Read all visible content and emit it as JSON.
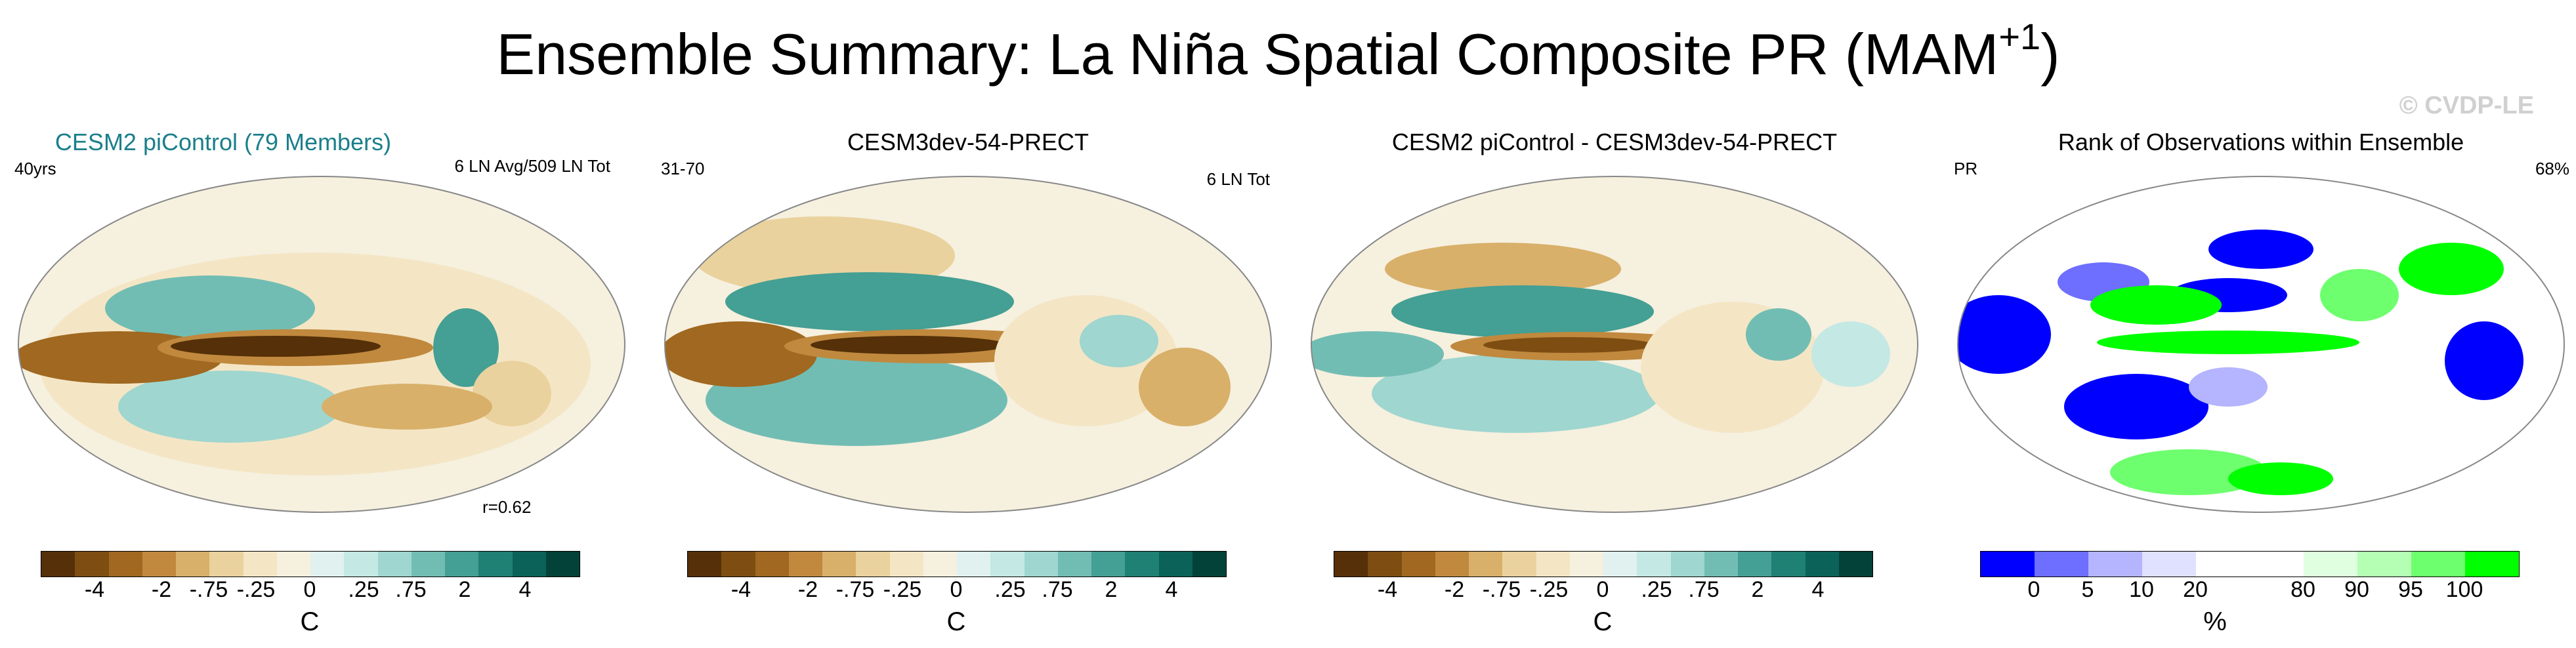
{
  "title": {
    "main": "Ensemble Summary: La Niña Spatial Composite PR (MAM",
    "sup": "+1",
    "close": ")"
  },
  "watermark": "© CVDP-LE",
  "colors": {
    "brbg": [
      "#553008",
      "#7e4d12",
      "#a06820",
      "#c0893e",
      "#d8b06a",
      "#ead29e",
      "#f4e6c5",
      "#f6f0df",
      "#e0f1ef",
      "#c4e8e4",
      "#9fd6cf",
      "#72bdb3",
      "#449f94",
      "#1f8074",
      "#0a6258",
      "#034238"
    ],
    "rank": [
      "#0000ff",
      "#6e6eff",
      "#b4b4ff",
      "#e0e0ff",
      "#ffffff",
      "#ffffff",
      "#e0ffe0",
      "#b4ffb4",
      "#6eff6e",
      "#00ff00"
    ]
  },
  "panels": [
    {
      "title": "CESM2 piControl (79 Members)",
      "left": "40yrs",
      "right": "6 LN Avg/509 LN Tot",
      "bottom_right": "r=0.62"
    },
    {
      "title": "CESM3dev-54-PRECT",
      "left": "31-70",
      "right": "6 LN Tot"
    },
    {
      "title": "CESM2 piControl - CESM3dev-54-PRECT",
      "left": "",
      "right": ""
    },
    {
      "title": "Rank of Observations within Ensemble",
      "left": "PR",
      "right": "68%"
    }
  ],
  "chart_data": [
    {
      "type": "heatmap",
      "title": "CESM2 piControl (79 Members)",
      "projection": "Robinson global map",
      "colorbar": {
        "levels": [
          "-4",
          "-2",
          "-.75",
          "-.25",
          "0",
          ".25",
          ".75",
          "2",
          "4"
        ],
        "unit": "C"
      }
    },
    {
      "type": "heatmap",
      "title": "CESM3dev-54-PRECT",
      "projection": "Robinson global map",
      "colorbar": {
        "levels": [
          "-4",
          "-2",
          "-.75",
          "-.25",
          "0",
          ".25",
          ".75",
          "2",
          "4"
        ],
        "unit": "C"
      }
    },
    {
      "type": "heatmap",
      "title": "CESM2 piControl - CESM3dev-54-PRECT",
      "projection": "Robinson global map",
      "colorbar": {
        "levels": [
          "-4",
          "-2",
          "-.75",
          "-.25",
          "0",
          ".25",
          ".75",
          "2",
          "4"
        ],
        "unit": "C"
      }
    },
    {
      "type": "heatmap",
      "title": "Rank of Observations within Ensemble",
      "projection": "Robinson global map",
      "colorbar": {
        "levels": [
          "0",
          "5",
          "10",
          "20",
          "80",
          "90",
          "95",
          "100"
        ],
        "unit": "%"
      }
    }
  ]
}
